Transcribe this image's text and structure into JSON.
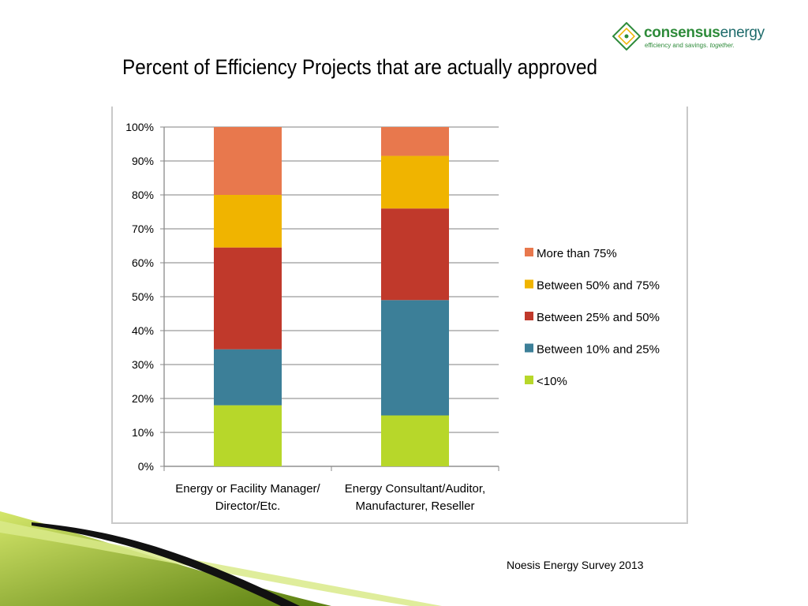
{
  "slide": {
    "title": "Percent of Efficiency Projects that are actually approved",
    "source": "Noesis Energy Survey 2013"
  },
  "logo": {
    "word1": "consensus",
    "word2": "energy",
    "tagline": "efficiency and savings.",
    "tagline_em": "together.",
    "color_green": "#2e8b3a",
    "color_teal": "#1e6b6b"
  },
  "colors": {
    "accent_light": "#d4e66a",
    "accent_dark": "#5a7f10"
  },
  "chart_data": {
    "type": "bar",
    "stacked": true,
    "categories": [
      [
        "Energy or Facility Manager/",
        "Director/Etc."
      ],
      [
        "Energy Consultant/Auditor,",
        "Manufacturer, Reseller"
      ]
    ],
    "series": [
      {
        "name": "<10%",
        "color": "#b7d72a",
        "values": [
          18,
          15
        ]
      },
      {
        "name": "Between 10% and 25%",
        "color": "#3c7f98",
        "values": [
          16.5,
          34
        ]
      },
      {
        "name": "Between 25% and 50%",
        "color": "#c0392b",
        "values": [
          30,
          27
        ]
      },
      {
        "name": "Between 50% and 75%",
        "color": "#f0b400",
        "values": [
          15.5,
          15.5
        ]
      },
      {
        "name": "More than 75%",
        "color": "#e8784d",
        "values": [
          20,
          8.5
        ]
      }
    ],
    "legend_order": [
      "More than 75%",
      "Between 50% and 75%",
      "Between 25% and 50%",
      "Between 10% and 25%",
      "<10%"
    ],
    "yticks": [
      "0%",
      "10%",
      "20%",
      "30%",
      "40%",
      "50%",
      "60%",
      "70%",
      "80%",
      "90%",
      "100%"
    ],
    "ylim": [
      0,
      100
    ],
    "grid": true,
    "legend_position": "right",
    "xlabel": "",
    "ylabel": ""
  }
}
